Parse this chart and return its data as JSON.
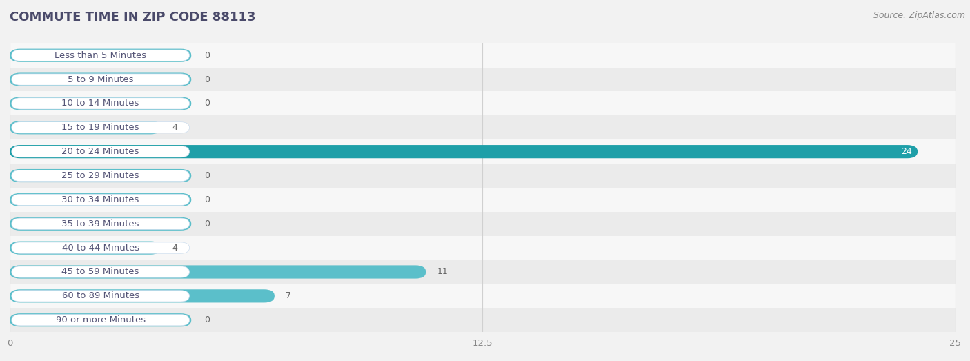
{
  "title": "COMMUTE TIME IN ZIP CODE 88113",
  "source": "Source: ZipAtlas.com",
  "categories": [
    "Less than 5 Minutes",
    "5 to 9 Minutes",
    "10 to 14 Minutes",
    "15 to 19 Minutes",
    "20 to 24 Minutes",
    "25 to 29 Minutes",
    "30 to 34 Minutes",
    "35 to 39 Minutes",
    "40 to 44 Minutes",
    "45 to 59 Minutes",
    "60 to 89 Minutes",
    "90 or more Minutes"
  ],
  "values": [
    0,
    0,
    0,
    4,
    24,
    0,
    0,
    0,
    4,
    11,
    7,
    0
  ],
  "bar_color_normal": "#5bbfca",
  "bar_color_highlight": "#1e9fa8",
  "highlight_index": 4,
  "xlim": [
    0,
    25
  ],
  "xticks": [
    0,
    12.5,
    25
  ],
  "background_color": "#f2f2f2",
  "row_bg_light": "#f7f7f7",
  "row_bg_dark": "#ebebeb",
  "title_fontsize": 13,
  "label_fontsize": 9.5,
  "value_fontsize": 9,
  "source_fontsize": 9,
  "title_color": "#4a4a6a",
  "label_color": "#555577",
  "value_color_outside": "#666666",
  "value_color_inside": "#ffffff",
  "source_color": "#888888"
}
